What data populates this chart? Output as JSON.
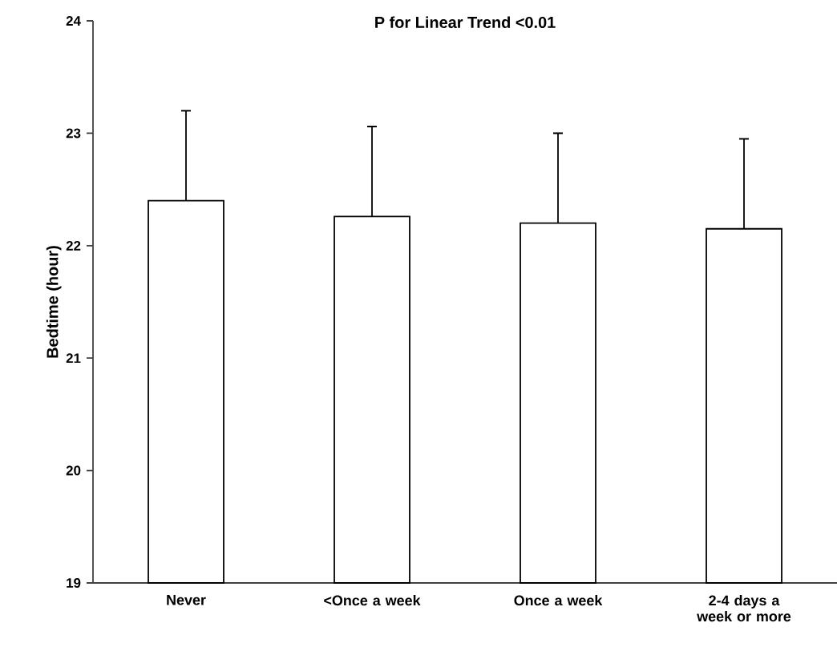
{
  "chart_data": {
    "type": "bar",
    "title": "P for Linear Trend <0.01",
    "ylabel": "Bedtime (hour)",
    "categories": [
      "Never",
      "<Once a week",
      "Once a week",
      "2-4 days a week or more"
    ],
    "values": [
      22.4,
      22.26,
      22.2,
      22.15
    ],
    "errors": [
      [
        22.4,
        23.2
      ],
      [
        22.26,
        23.06
      ],
      [
        22.2,
        23.0
      ],
      [
        22.15,
        22.95
      ]
    ],
    "color": "#ffffff",
    "ylim": [
      19,
      24
    ],
    "yticks": [
      19,
      20,
      21,
      22,
      23,
      24
    ],
    "grid": false
  }
}
